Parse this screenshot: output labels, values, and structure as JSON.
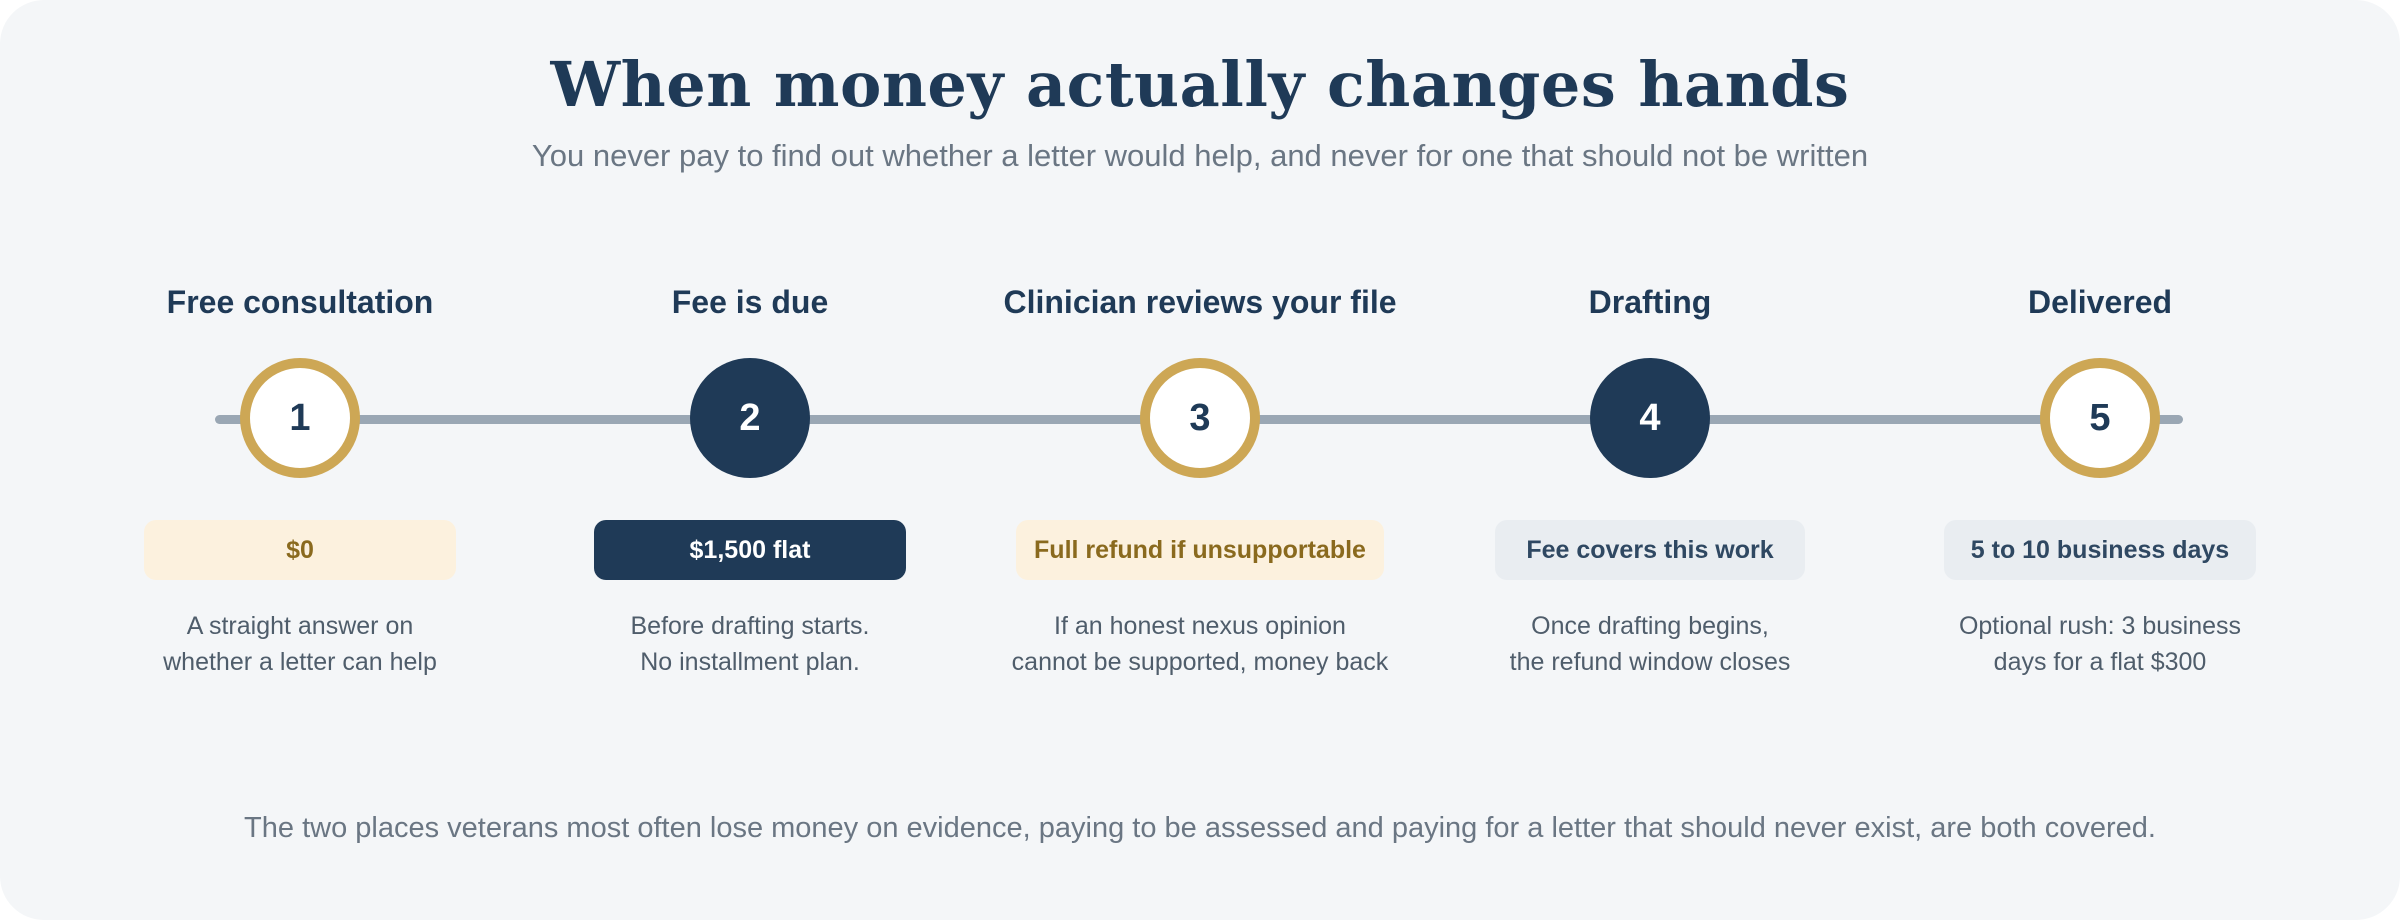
{
  "header": {
    "title": "When money actually changes hands",
    "subtitle": "You never pay to find out whether a letter would help, and never for one that should not be written"
  },
  "steps": [
    {
      "number": "1",
      "title": "Free consultation",
      "marker_style": "outline",
      "pill": "$0",
      "pill_style": "gold",
      "desc": [
        "A straight answer on",
        "whether a letter can help"
      ]
    },
    {
      "number": "2",
      "title": "Fee is due",
      "marker_style": "filled",
      "pill": "$1,500 flat",
      "pill_style": "dark",
      "desc": [
        "Before drafting starts.",
        "No installment plan."
      ]
    },
    {
      "number": "3",
      "title": "Clinician reviews your file",
      "marker_style": "outline",
      "pill": "Full refund if unsupportable",
      "pill_style": "gold",
      "desc": [
        "If an honest nexus opinion",
        "cannot be supported, money back"
      ]
    },
    {
      "number": "4",
      "title": "Drafting",
      "marker_style": "filled",
      "pill": "Fee covers this work",
      "pill_style": "light",
      "desc": [
        "Once drafting begins,",
        "the refund window closes"
      ]
    },
    {
      "number": "5",
      "title": "Delivered",
      "marker_style": "outline",
      "pill": "5 to 10 business days",
      "pill_style": "light",
      "desc": [
        "Optional rush: 3 business",
        "days for a flat $300"
      ]
    }
  ],
  "footer": {
    "text": "The two places veterans most often lose money on evidence, paying to be assessed and paying for a letter that should never exist, are both covered."
  },
  "colors": {
    "navy": "#1f3a57",
    "gold": "#cda755",
    "gold_tint": "#fcf1de",
    "track": "#9aa7b4",
    "background": "#f4f6f8"
  }
}
